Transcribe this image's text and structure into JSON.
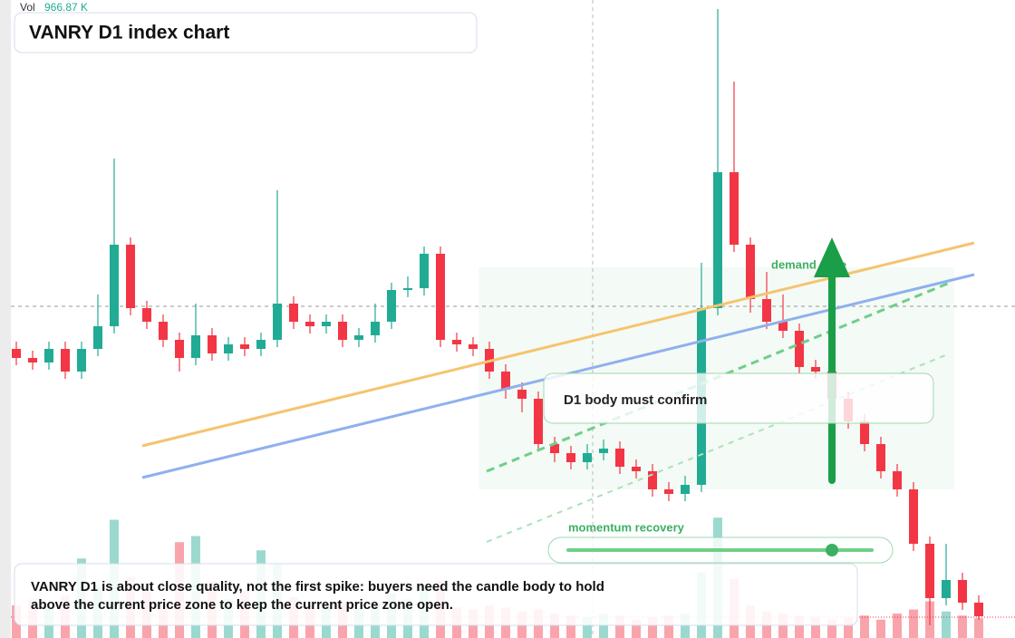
{
  "chart_data": {
    "type": "candlestick",
    "title": "VANRY D1 index chart",
    "volume_label": "Vol",
    "volume_readout": "966.87 K",
    "annotations": [
      "demand zone",
      "D1 body must confirm",
      "momentum recovery"
    ],
    "note": [
      "VANRY D1 is about close quality, not the first spike: buyers need the candle body to hold",
      "above the current price zone to keep the current price zone open."
    ],
    "up_color": "#22ab94",
    "down_color": "#f23645",
    "ylim": [
      0,
      704
    ],
    "vlim": [
      0,
      6000
    ],
    "open": [
      319,
      309,
      304,
      319,
      294,
      319,
      344,
      434,
      364,
      349,
      329,
      309,
      334,
      314,
      324,
      319,
      329,
      369,
      349,
      344,
      349,
      329,
      334,
      349,
      384,
      386,
      424,
      329,
      324,
      319,
      294,
      274,
      264,
      214,
      204,
      194,
      204,
      209,
      189,
      184,
      164,
      159,
      169,
      364,
      514,
      434,
      374,
      349,
      339,
      299,
      294,
      264,
      239,
      214,
      184,
      164,
      104,
      44,
      64,
      39
    ],
    "high": [
      327,
      317,
      327,
      327,
      327,
      379,
      529,
      442,
      372,
      357,
      337,
      369,
      342,
      332,
      332,
      337,
      494,
      377,
      357,
      357,
      357,
      342,
      369,
      392,
      399,
      432,
      432,
      337,
      332,
      327,
      302,
      282,
      272,
      222,
      212,
      214,
      219,
      217,
      197,
      192,
      172,
      179,
      414,
      694,
      614,
      442,
      404,
      379,
      347,
      307,
      302,
      272,
      247,
      222,
      192,
      172,
      112,
      104,
      72,
      47
    ],
    "low": [
      301,
      296,
      296,
      286,
      286,
      311,
      336,
      356,
      341,
      321,
      294,
      301,
      306,
      306,
      311,
      311,
      321,
      341,
      336,
      336,
      321,
      321,
      326,
      341,
      376,
      378,
      321,
      316,
      311,
      286,
      264,
      249,
      206,
      194,
      186,
      186,
      196,
      181,
      176,
      156,
      151,
      151,
      161,
      356,
      426,
      359,
      341,
      331,
      291,
      286,
      256,
      231,
      206,
      176,
      156,
      96,
      14,
      36,
      31,
      20
    ],
    "close": [
      309,
      304,
      319,
      294,
      319,
      344,
      434,
      364,
      349,
      329,
      309,
      334,
      314,
      324,
      319,
      329,
      369,
      349,
      344,
      349,
      329,
      334,
      349,
      384,
      386,
      424,
      329,
      324,
      319,
      294,
      274,
      264,
      214,
      204,
      194,
      204,
      209,
      189,
      184,
      164,
      159,
      169,
      364,
      514,
      434,
      374,
      349,
      339,
      299,
      294,
      264,
      239,
      214,
      184,
      164,
      104,
      44,
      64,
      39,
      24
    ],
    "volume": [
      1600,
      1900,
      1500,
      2100,
      3900,
      2600,
      5800,
      3000,
      2300,
      1700,
      4700,
      5000,
      2800,
      1900,
      2300,
      4300,
      3600,
      2000,
      1600,
      1500,
      1800,
      1400,
      1700,
      2200,
      1900,
      2600,
      2800,
      1500,
      1400,
      1600,
      1500,
      1300,
      1400,
      1200,
      1100,
      1000,
      1200,
      1100,
      900,
      1000,
      1100,
      1200,
      3200,
      5900,
      2900,
      1600,
      1300,
      1200,
      1100,
      1000,
      900,
      1000,
      1100,
      900,
      1200,
      1400,
      1800,
      1300,
      1100,
      966.87
    ]
  }
}
